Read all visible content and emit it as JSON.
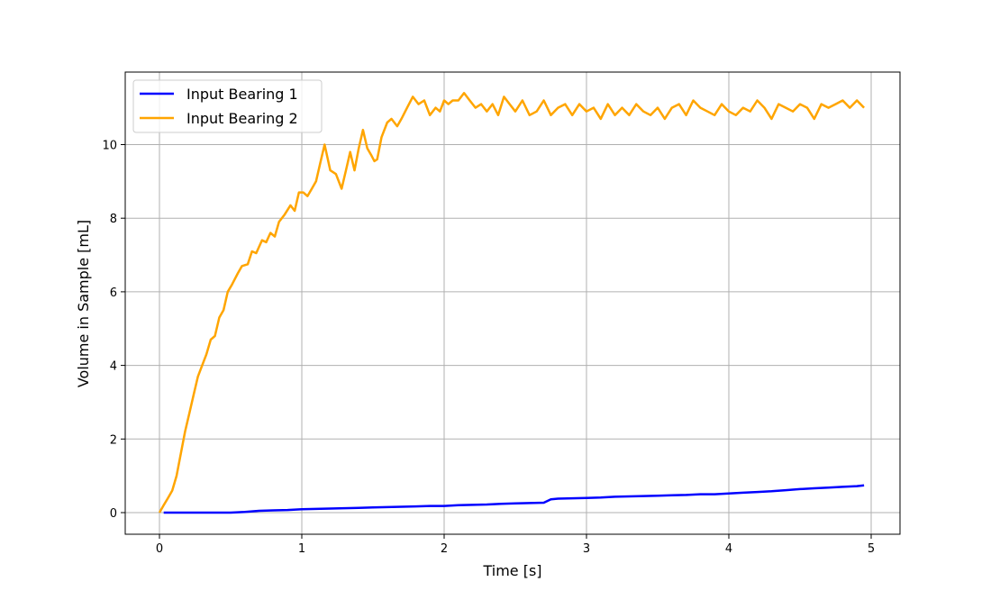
{
  "chart_data": {
    "type": "line",
    "title": "",
    "xlabel": "Time [s]",
    "ylabel": "Volume in Sample [mL]",
    "xlim": [
      -0.24,
      5.2
    ],
    "ylim": [
      -0.58,
      11.98
    ],
    "xticks": [
      0,
      1,
      2,
      3,
      4,
      5
    ],
    "yticks": [
      0,
      2,
      4,
      6,
      8,
      10
    ],
    "grid": true,
    "legend_position": "upper left",
    "series": [
      {
        "name": "Input Bearing 1",
        "color": "#0000ff",
        "x": [
          0.03,
          0.2,
          0.4,
          0.5,
          0.6,
          0.7,
          0.8,
          0.9,
          1.0,
          1.1,
          1.2,
          1.3,
          1.4,
          1.5,
          1.6,
          1.7,
          1.8,
          1.9,
          2.0,
          2.1,
          2.2,
          2.3,
          2.4,
          2.5,
          2.6,
          2.7,
          2.75,
          2.8,
          2.9,
          3.0,
          3.1,
          3.2,
          3.3,
          3.4,
          3.5,
          3.6,
          3.7,
          3.8,
          3.9,
          4.0,
          4.1,
          4.2,
          4.3,
          4.4,
          4.5,
          4.6,
          4.7,
          4.8,
          4.9,
          4.95
        ],
        "y": [
          0.0,
          0.0,
          0.0,
          0.0,
          0.02,
          0.05,
          0.06,
          0.07,
          0.09,
          0.1,
          0.11,
          0.12,
          0.13,
          0.14,
          0.15,
          0.16,
          0.17,
          0.18,
          0.18,
          0.2,
          0.21,
          0.22,
          0.24,
          0.25,
          0.26,
          0.27,
          0.36,
          0.38,
          0.39,
          0.4,
          0.41,
          0.43,
          0.44,
          0.45,
          0.46,
          0.47,
          0.48,
          0.5,
          0.5,
          0.52,
          0.54,
          0.56,
          0.58,
          0.61,
          0.64,
          0.66,
          0.68,
          0.7,
          0.72,
          0.74
        ]
      },
      {
        "name": "Input Bearing 2",
        "color": "#ffa500",
        "x": [
          0.0,
          0.03,
          0.06,
          0.09,
          0.12,
          0.15,
          0.18,
          0.21,
          0.24,
          0.27,
          0.3,
          0.33,
          0.36,
          0.39,
          0.42,
          0.45,
          0.48,
          0.51,
          0.55,
          0.58,
          0.62,
          0.65,
          0.68,
          0.72,
          0.75,
          0.78,
          0.81,
          0.84,
          0.88,
          0.92,
          0.95,
          0.98,
          1.01,
          1.04,
          1.07,
          1.1,
          1.13,
          1.16,
          1.2,
          1.24,
          1.28,
          1.31,
          1.34,
          1.37,
          1.4,
          1.43,
          1.46,
          1.49,
          1.51,
          1.53,
          1.56,
          1.6,
          1.63,
          1.67,
          1.7,
          1.74,
          1.78,
          1.82,
          1.86,
          1.9,
          1.94,
          1.97,
          2.0,
          2.03,
          2.06,
          2.1,
          2.14,
          2.18,
          2.22,
          2.26,
          2.3,
          2.34,
          2.38,
          2.42,
          2.46,
          2.5,
          2.55,
          2.6,
          2.65,
          2.7,
          2.75,
          2.8,
          2.85,
          2.9,
          2.95,
          3.0,
          3.05,
          3.1,
          3.15,
          3.2,
          3.25,
          3.3,
          3.35,
          3.4,
          3.45,
          3.5,
          3.55,
          3.6,
          3.65,
          3.7,
          3.75,
          3.8,
          3.85,
          3.9,
          3.95,
          4.0,
          4.05,
          4.1,
          4.15,
          4.2,
          4.25,
          4.3,
          4.35,
          4.4,
          4.45,
          4.5,
          4.55,
          4.6,
          4.65,
          4.7,
          4.75,
          4.8,
          4.85,
          4.9,
          4.95
        ],
        "y": [
          0.0,
          0.2,
          0.4,
          0.6,
          1.0,
          1.6,
          2.2,
          2.7,
          3.2,
          3.7,
          4.0,
          4.3,
          4.7,
          4.8,
          5.3,
          5.5,
          6.0,
          6.2,
          6.5,
          6.7,
          6.75,
          7.1,
          7.05,
          7.4,
          7.35,
          7.6,
          7.5,
          7.9,
          8.1,
          8.35,
          8.2,
          8.7,
          8.7,
          8.6,
          8.8,
          9.0,
          9.5,
          10.0,
          9.3,
          9.2,
          8.8,
          9.3,
          9.8,
          9.3,
          9.9,
          10.4,
          9.9,
          9.7,
          9.55,
          9.6,
          10.2,
          10.6,
          10.7,
          10.5,
          10.7,
          11.0,
          11.3,
          11.1,
          11.2,
          10.8,
          11.0,
          10.9,
          11.2,
          11.1,
          11.2,
          11.2,
          11.4,
          11.2,
          11.0,
          11.1,
          10.9,
          11.1,
          10.8,
          11.3,
          11.1,
          10.9,
          11.2,
          10.8,
          10.9,
          11.2,
          10.8,
          11.0,
          11.1,
          10.8,
          11.1,
          10.9,
          11.0,
          10.7,
          11.1,
          10.8,
          11.0,
          10.8,
          11.1,
          10.9,
          10.8,
          11.0,
          10.7,
          11.0,
          11.1,
          10.8,
          11.2,
          11.0,
          10.9,
          10.8,
          11.1,
          10.9,
          10.8,
          11.0,
          10.9,
          11.2,
          11.0,
          10.7,
          11.1,
          11.0,
          10.9,
          11.1,
          11.0,
          10.7,
          11.1,
          11.0,
          11.1,
          11.2,
          11.0,
          11.2,
          11.0
        ]
      }
    ]
  }
}
